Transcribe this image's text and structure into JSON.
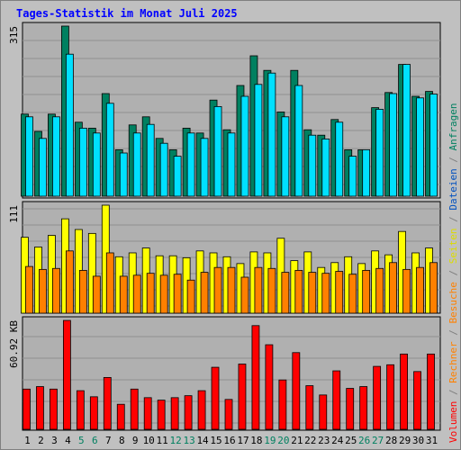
{
  "title": "Tages-Statistik im Monat Juli 2025",
  "colors": {
    "background": "#c0c0c0",
    "plot_bg": "#b0b0b0",
    "title": "#0000ff",
    "anfragen": "#008060",
    "dateien": "#00e0ff",
    "seiten": "#ffff00",
    "besuche": "#ff8000",
    "volumen": "#ff0000",
    "weekend_label": "#008060",
    "day_label": "#000000",
    "separator": "#808080"
  },
  "legend": {
    "volumen": "Volumen",
    "rechner": "Rechner",
    "besuche": "Besuche",
    "seiten": "Seiten",
    "dateien": "Dateien",
    "anfragen": "Anfragen",
    "sep": " / "
  },
  "chart_data": [
    {
      "type": "bar",
      "panel": "top",
      "max_label": "315",
      "ylim": [
        0,
        315
      ],
      "categories": [
        "1",
        "2",
        "3",
        "4",
        "5",
        "6",
        "7",
        "8",
        "9",
        "10",
        "11",
        "12",
        "13",
        "14",
        "15",
        "16",
        "17",
        "18",
        "19",
        "20",
        "21",
        "22",
        "23",
        "24",
        "25",
        "26",
        "27",
        "28",
        "29",
        "30",
        "31"
      ],
      "series": [
        {
          "name": "Anfragen",
          "values": [
            152,
            120,
            152,
            315,
            137,
            126,
            190,
            86,
            132,
            147,
            107,
            86,
            126,
            117,
            178,
            123,
            205,
            260,
            233,
            156,
            233,
            123,
            113,
            142,
            86,
            86,
            164,
            192,
            244,
            185,
            194
          ]
        },
        {
          "name": "Dateien",
          "values": [
            147,
            107,
            147,
            263,
            126,
            117,
            172,
            80,
            117,
            133,
            98,
            74,
            117,
            107,
            166,
            117,
            185,
            207,
            228,
            147,
            205,
            113,
            106,
            137,
            74,
            86,
            161,
            190,
            244,
            182,
            189
          ]
        }
      ]
    },
    {
      "type": "bar",
      "panel": "middle",
      "max_label": "111",
      "ylim": [
        0,
        111
      ],
      "categories": [
        "1",
        "2",
        "3",
        "4",
        "5",
        "6",
        "7",
        "8",
        "9",
        "10",
        "11",
        "12",
        "13",
        "14",
        "15",
        "16",
        "17",
        "18",
        "19",
        "20",
        "21",
        "22",
        "23",
        "24",
        "25",
        "26",
        "27",
        "28",
        "29",
        "30",
        "31"
      ],
      "series": [
        {
          "name": "Seiten",
          "values": [
            78,
            68,
            80,
            97,
            86,
            82,
            111,
            58,
            62,
            67,
            59,
            59,
            57,
            64,
            62,
            58,
            51,
            63,
            62,
            77,
            54,
            63,
            47,
            52,
            58,
            51,
            64,
            60,
            84,
            62,
            67
          ]
        },
        {
          "name": "Besuche",
          "values": [
            48,
            45,
            46,
            64,
            44,
            38,
            62,
            38,
            39,
            41,
            39,
            40,
            34,
            42,
            47,
            47,
            37,
            47,
            46,
            42,
            44,
            42,
            41,
            43,
            40,
            44,
            46,
            52,
            45,
            47,
            52
          ]
        }
      ]
    },
    {
      "type": "bar",
      "panel": "bottom",
      "max_label": "60.92 KB",
      "ylim": [
        0,
        60.92
      ],
      "categories": [
        "1",
        "2",
        "3",
        "4",
        "5",
        "6",
        "7",
        "8",
        "9",
        "10",
        "11",
        "12",
        "13",
        "14",
        "15",
        "16",
        "17",
        "18",
        "19",
        "20",
        "21",
        "22",
        "23",
        "24",
        "25",
        "26",
        "27",
        "28",
        "29",
        "30",
        "31"
      ],
      "series": [
        {
          "name": "Volumen",
          "values": [
            22.5,
            23.9,
            22.5,
            60.9,
            21.6,
            18.2,
            29.0,
            14.0,
            22.5,
            17.7,
            16.3,
            17.7,
            18.8,
            21.6,
            34.7,
            16.7,
            36.5,
            58.0,
            47.3,
            27.6,
            42.9,
            24.4,
            19.2,
            32.7,
            22.9,
            23.9,
            35.2,
            36.1,
            42.1,
            32.3,
            42.1
          ]
        }
      ]
    }
  ],
  "x_labels": [
    "1",
    "2",
    "3",
    "4",
    "5",
    "6",
    "7",
    "8",
    "9",
    "10",
    "11",
    "12",
    "13",
    "14",
    "15",
    "16",
    "17",
    "18",
    "19",
    "20",
    "21",
    "22",
    "23",
    "24",
    "25",
    "26",
    "27",
    "28",
    "29",
    "30",
    "31"
  ],
  "weekend_days": [
    "5",
    "6",
    "12",
    "13",
    "19",
    "20",
    "26",
    "27"
  ]
}
